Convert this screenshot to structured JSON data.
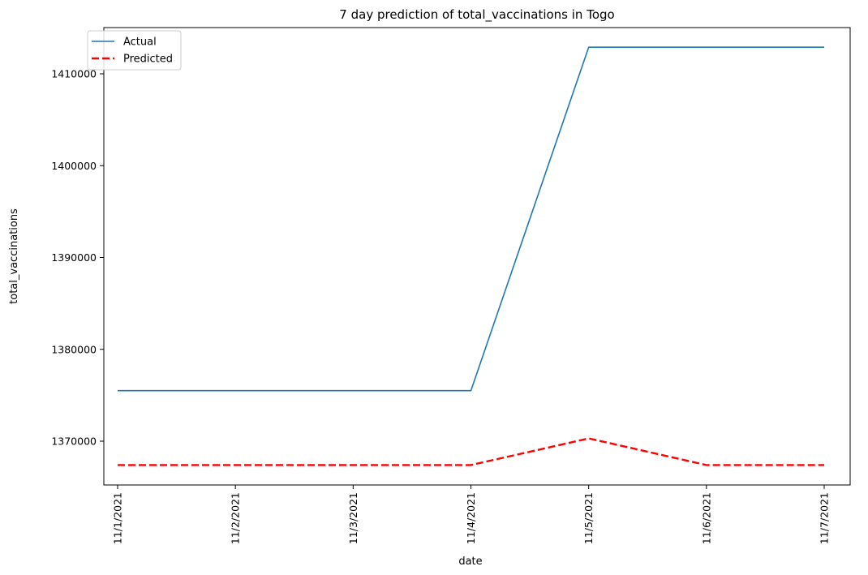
{
  "chart_data": {
    "type": "line",
    "title": "7 day prediction of total_vaccinations in Togo",
    "xlabel": "date",
    "ylabel": "total_vaccinations",
    "categories": [
      "11/1/2021",
      "11/2/2021",
      "11/3/2021",
      "11/4/2021",
      "11/5/2021",
      "11/6/2021",
      "11/7/2021"
    ],
    "ylim": [
      1365000,
      1415000
    ],
    "yticks": [
      1370000,
      1380000,
      1390000,
      1400000,
      1410000
    ],
    "ytick_labels": [
      "1370000",
      "1380000",
      "1390000",
      "1400000",
      "1410000"
    ],
    "grid": false,
    "legend_position": "top-left",
    "series": [
      {
        "name": "Actual",
        "color": "#1f77b4",
        "style": "solid",
        "values": [
          1375500,
          1375500,
          1375500,
          1375500,
          1412900,
          1412900,
          1412900
        ]
      },
      {
        "name": "Predicted",
        "color": "#ff0000",
        "style": "dashed",
        "values": [
          1367400,
          1367400,
          1367400,
          1367400,
          1370300,
          1367400,
          1367400
        ]
      }
    ]
  }
}
